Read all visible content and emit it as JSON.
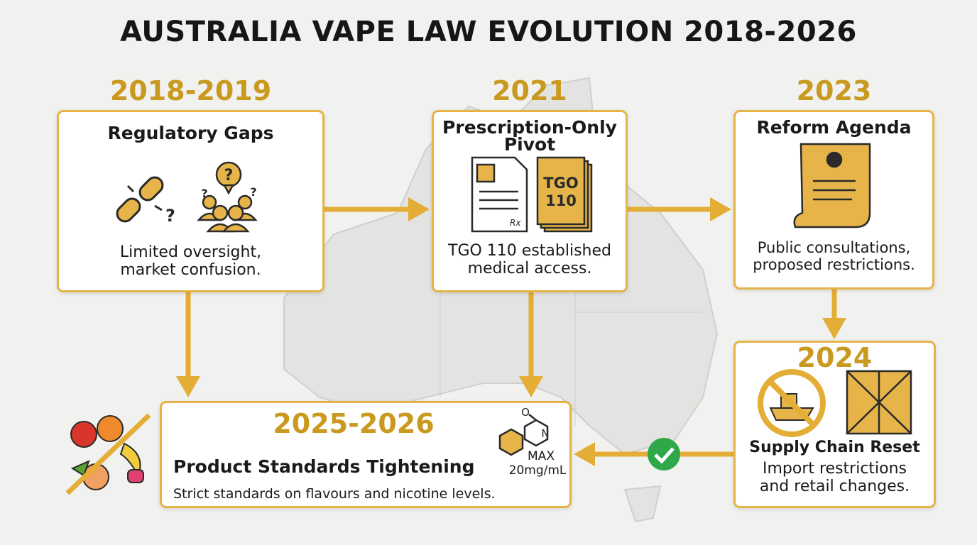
{
  "title": "AUSTRALIA VAPE LAW EVOLUTION 2018-2026",
  "stages": [
    {
      "year": "2018-2019",
      "heading": [
        "Regulatory Gaps"
      ],
      "description": [
        "Limited oversight,",
        "market confusion."
      ]
    },
    {
      "year": "2021",
      "heading": [
        "Prescription-Only",
        "Pivot"
      ],
      "description": [
        "TGO 110 established",
        "medical access."
      ]
    },
    {
      "year": "2023",
      "heading": [
        "Reform Agenda"
      ],
      "description": [
        "Public consultations,",
        "proposed restrictions."
      ]
    },
    {
      "year": "2024",
      "heading": [
        "Supply Chain Reset"
      ],
      "description": [
        "Import restrictions",
        "and retail changes."
      ]
    },
    {
      "year": "2025-2026",
      "heading": [
        "Product Standards Tightening"
      ],
      "description": [
        "Strict standards on flavours and nicotine levels."
      ]
    }
  ],
  "icons": {
    "question_mark": "?",
    "tgo_label": [
      "TGO",
      "110"
    ],
    "rx": "Rx",
    "chem_n": "N",
    "chem_o": "O",
    "max_label": [
      "MAX",
      "20mg/mL"
    ]
  }
}
